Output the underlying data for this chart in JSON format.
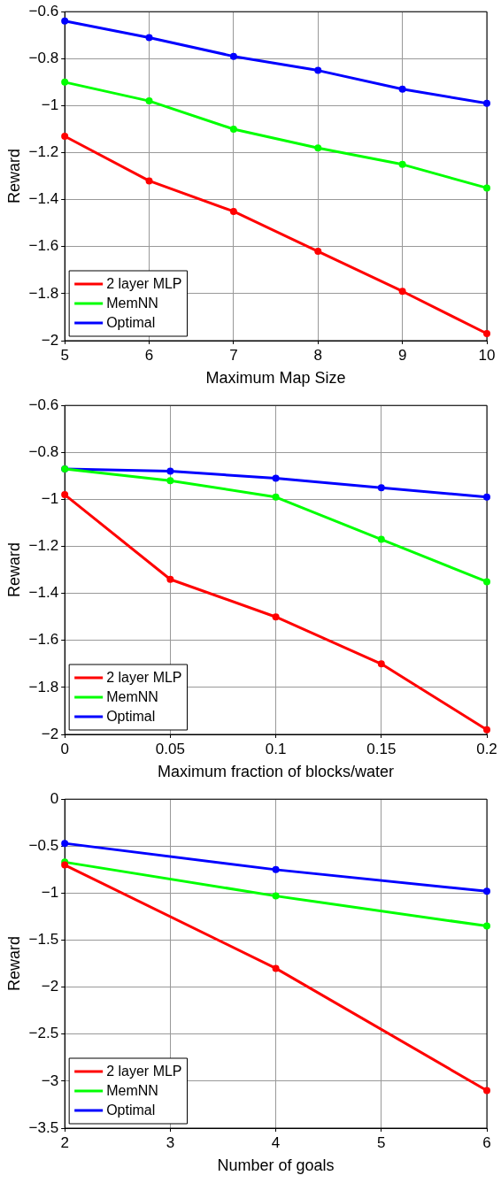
{
  "chart_data": [
    {
      "type": "line",
      "xlabel": "Maximum Map Size",
      "ylabel": "Reward",
      "x": [
        5,
        6,
        7,
        8,
        9,
        10
      ],
      "xlim": [
        5,
        10
      ],
      "xticks": [
        5,
        6,
        7,
        8,
        9,
        10
      ],
      "ylim": [
        -2,
        -0.6
      ],
      "yticks": [
        -2,
        -1.8,
        -1.6,
        -1.4,
        -1.2,
        -1,
        -0.8,
        -0.6
      ],
      "grid": true,
      "legend": "bottom left",
      "marker": "circle",
      "line_style": "solid",
      "series": [
        {
          "name": "2 layer MLP",
          "color": "#ff0000",
          "values": [
            -1.13,
            -1.32,
            -1.45,
            -1.62,
            -1.79,
            -1.97
          ]
        },
        {
          "name": "MemNN",
          "color": "#00ff00",
          "values": [
            -0.9,
            -0.98,
            -1.1,
            -1.18,
            -1.25,
            -1.35
          ]
        },
        {
          "name": "Optimal",
          "color": "#0000ff",
          "values": [
            -0.64,
            -0.71,
            -0.79,
            -0.85,
            -0.93,
            -0.99
          ]
        }
      ]
    },
    {
      "type": "line",
      "xlabel": "Maximum fraction of blocks/water",
      "ylabel": "Reward",
      "x": [
        0,
        0.05,
        0.1,
        0.15,
        0.2
      ],
      "xlim": [
        0,
        0.2
      ],
      "xticks": [
        0,
        0.05,
        0.1,
        0.15,
        0.2
      ],
      "ylim": [
        -2,
        -0.6
      ],
      "yticks": [
        -2,
        -1.8,
        -1.6,
        -1.4,
        -1.2,
        -1,
        -0.8,
        -0.6
      ],
      "grid": true,
      "legend": "bottom left",
      "marker": "circle",
      "line_style": "solid",
      "series": [
        {
          "name": "2 layer MLP",
          "color": "#ff0000",
          "values": [
            -0.98,
            -1.34,
            -1.5,
            -1.7,
            -1.98
          ]
        },
        {
          "name": "MemNN",
          "color": "#00ff00",
          "values": [
            -0.87,
            -0.92,
            -0.99,
            -1.17,
            -1.35
          ]
        },
        {
          "name": "Optimal",
          "color": "#0000ff",
          "values": [
            -0.87,
            -0.88,
            -0.91,
            -0.95,
            -0.99
          ]
        }
      ]
    },
    {
      "type": "line",
      "xlabel": "Number of goals",
      "ylabel": "Reward",
      "x": [
        2,
        4,
        6
      ],
      "xlim": [
        2,
        6
      ],
      "xticks": [
        2,
        3,
        4,
        5,
        6
      ],
      "ylim": [
        -3.5,
        0
      ],
      "yticks": [
        -3.5,
        -3,
        -2.5,
        -2,
        -1.5,
        -1,
        -0.5,
        0
      ],
      "grid": true,
      "legend": "bottom left",
      "marker": "circle",
      "line_style": "solid",
      "series": [
        {
          "name": "2 layer MLP",
          "color": "#ff0000",
          "values": [
            -0.7,
            -1.8,
            -3.1
          ]
        },
        {
          "name": "MemNN",
          "color": "#00ff00",
          "values": [
            -0.67,
            -1.03,
            -1.35
          ]
        },
        {
          "name": "Optimal",
          "color": "#0000ff",
          "values": [
            -0.47,
            -0.75,
            -0.98
          ]
        }
      ]
    }
  ]
}
